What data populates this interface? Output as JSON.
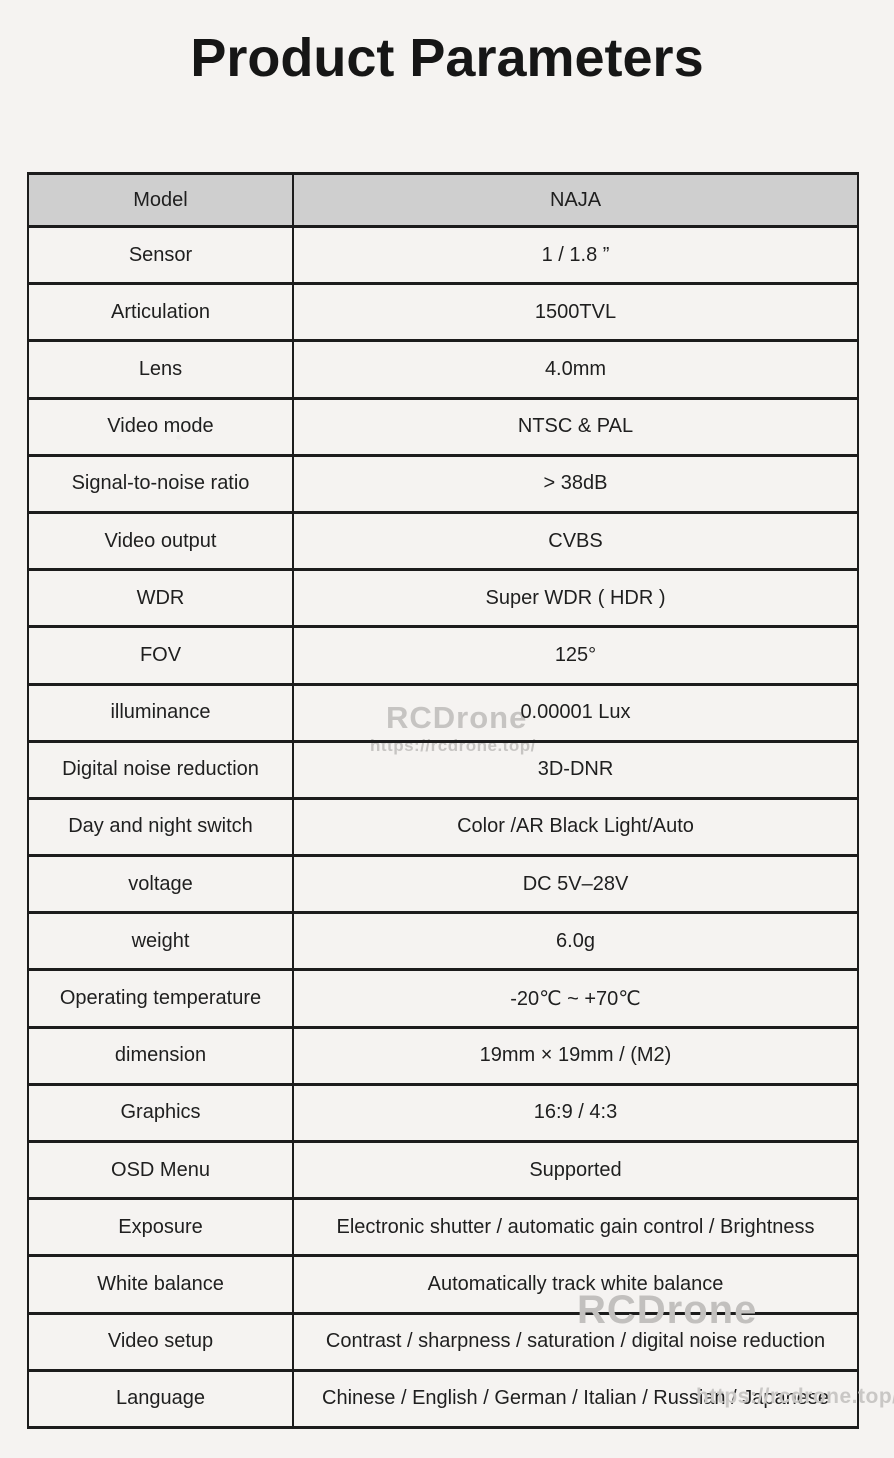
{
  "page": {
    "title": "Product Parameters"
  },
  "table": {
    "header": {
      "label": "Model",
      "value": "NAJA"
    },
    "rows": [
      {
        "label": "Sensor",
        "value": "1 / 1.8 ”"
      },
      {
        "label": "Articulation",
        "value": "1500TVL"
      },
      {
        "label": "Lens",
        "value": "4.0mm"
      },
      {
        "label": "Video mode",
        "value": "NTSC & PAL"
      },
      {
        "label": "Signal-to-noise ratio",
        "value": "> 38dB"
      },
      {
        "label": "Video output",
        "value": "CVBS"
      },
      {
        "label": "WDR",
        "value": "Super WDR ( HDR )"
      },
      {
        "label": "FOV",
        "value": "125°"
      },
      {
        "label": "illuminance",
        "value": "0.00001 Lux"
      },
      {
        "label": "Digital noise reduction",
        "value": "3D-DNR"
      },
      {
        "label": "Day and night switch",
        "value": "Color /AR Black Light/Auto"
      },
      {
        "label": "voltage",
        "value": "DC 5V–28V"
      },
      {
        "label": "weight",
        "value": "6.0g"
      },
      {
        "label": "Operating temperature",
        "value": "-20℃ ~ +70℃"
      },
      {
        "label": "dimension",
        "value": "19mm × 19mm / (M2)"
      },
      {
        "label": "Graphics",
        "value": "16:9 / 4:3"
      },
      {
        "label": "OSD Menu",
        "value": "Supported"
      },
      {
        "label": "Exposure",
        "value": "Electronic shutter / automatic gain control / Brightness"
      },
      {
        "label": "White balance",
        "value": "Automatically track white balance"
      },
      {
        "label": "Video setup",
        "value": "Contrast / sharpness / saturation / digital noise reduction"
      },
      {
        "label": "Language",
        "value": "Chinese / English / German / Italian / Russian / Japanese"
      }
    ]
  },
  "watermarks": {
    "brand": "RCDrone",
    "url": "https://rcdrone.top/"
  },
  "colors": {
    "page_bg": "#f5f3f1",
    "header_bg": "#cfcfcf",
    "border": "#1c1c1c",
    "text": "#1f1f1f",
    "watermark": "#c6c4c2"
  }
}
